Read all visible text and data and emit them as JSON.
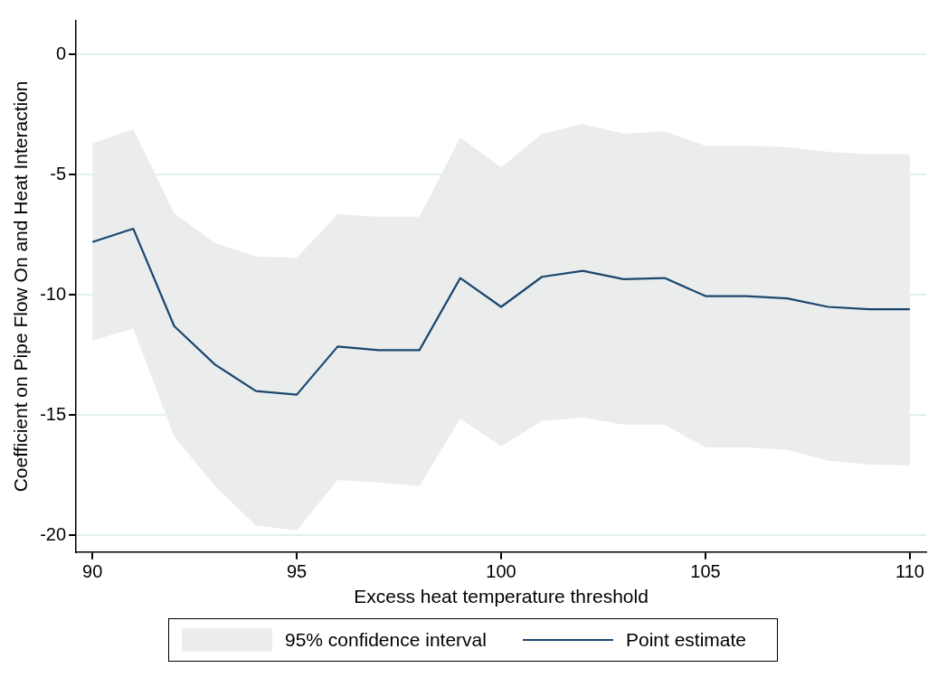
{
  "chart_data": {
    "type": "line",
    "xlabel": "Excess heat temperature threshold",
    "ylabel": "Coefficient on Pipe Flow On and Heat Interaction",
    "x": [
      90,
      91,
      92,
      93,
      94,
      95,
      96,
      97,
      98,
      99,
      100,
      101,
      102,
      103,
      104,
      105,
      106,
      107,
      108,
      109,
      110
    ],
    "series": [
      {
        "name": "Point estimate",
        "color": "#1a476f",
        "values": [
          -7.8,
          -7.25,
          -11.3,
          -12.9,
          -14.0,
          -14.15,
          -12.15,
          -12.3,
          -12.3,
          -9.3,
          -10.5,
          -9.25,
          -9.0,
          -9.35,
          -9.3,
          -10.05,
          -10.05,
          -10.15,
          -10.5,
          -10.6,
          -10.6
        ],
        "lower": [
          -11.9,
          -11.4,
          -15.9,
          -17.95,
          -19.6,
          -19.8,
          -17.7,
          -17.8,
          -17.95,
          -15.15,
          -16.3,
          -15.25,
          -15.1,
          -15.4,
          -15.4,
          -16.35,
          -16.35,
          -16.45,
          -16.9,
          -17.05,
          -17.1
        ],
        "upper": [
          -3.7,
          -3.1,
          -6.6,
          -7.85,
          -8.4,
          -8.45,
          -6.65,
          -6.75,
          -6.75,
          -3.45,
          -4.7,
          -3.3,
          -2.9,
          -3.3,
          -3.2,
          -3.8,
          -3.8,
          -3.85,
          -4.05,
          -4.15,
          -4.15
        ]
      }
    ],
    "annotations": [
      "95% confidence interval"
    ],
    "xlim": [
      89.6,
      110.4
    ],
    "xticks": [
      90,
      95,
      100,
      105,
      110
    ],
    "ylim": [
      -20.7,
      1.4
    ],
    "yticks": [
      -20,
      -15,
      -10,
      -5,
      0
    ],
    "grid": "y",
    "legend": "bottom",
    "marker": "none",
    "line_style": "solid"
  }
}
